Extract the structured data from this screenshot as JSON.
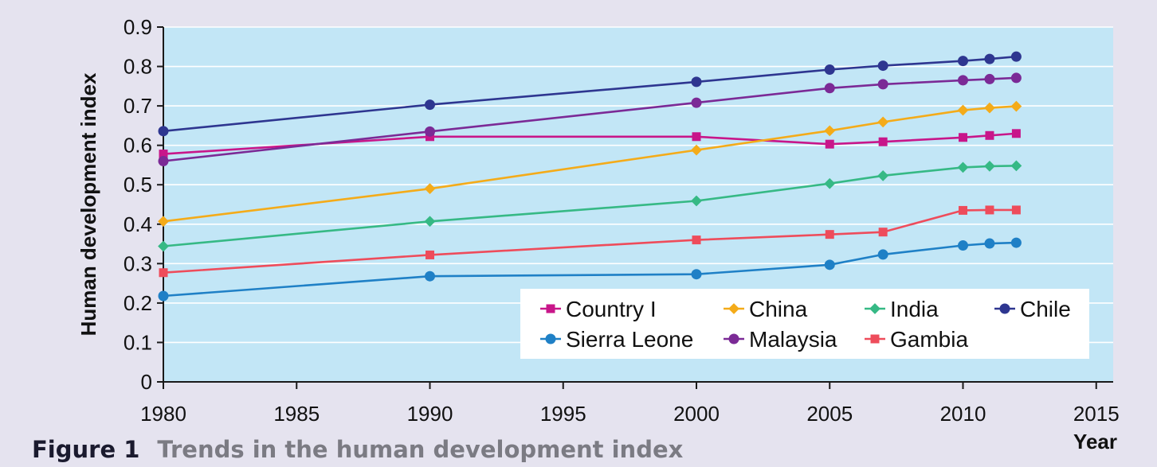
{
  "caption": {
    "number": "Figure 1",
    "text": "Trends in the human development index"
  },
  "colors": {
    "page_background": "#e5e3ef",
    "plot_background": "#c2e6f6",
    "gridline": "#ffffff",
    "axis": "#1a1a1a"
  },
  "chart_data": {
    "type": "line",
    "title": "",
    "xlabel": "Year",
    "ylabel": "Human development index",
    "xlim": [
      1980,
      2015
    ],
    "ylim": [
      0,
      0.9
    ],
    "xticks": [
      1980,
      1985,
      1990,
      1995,
      2000,
      2005,
      2010,
      2015
    ],
    "yticks": [
      0,
      0.1,
      0.2,
      0.3,
      0.4,
      0.5,
      0.6,
      0.7,
      0.8,
      0.9
    ],
    "xtick_labels": [
      "1980",
      "1985",
      "1990",
      "1995",
      "2000",
      "2005",
      "2010",
      "2015"
    ],
    "ytick_labels": [
      "0",
      "0.1",
      "0.2",
      "0.3",
      "0.4",
      "0.5",
      "0.6",
      "0.7",
      "0.8",
      "0.9"
    ],
    "grid": "horizontal",
    "legend_position": "bottom-right",
    "series": [
      {
        "name": "Country I",
        "color": "#c8168a",
        "marker": "square",
        "x": [
          1980,
          1990,
          2000,
          2005,
          2007,
          2010,
          2011,
          2012
        ],
        "y": [
          0.578,
          0.622,
          0.622,
          0.603,
          0.609,
          0.62,
          0.625,
          0.63
        ]
      },
      {
        "name": "China",
        "color": "#f4ab19",
        "marker": "diamond",
        "x": [
          1980,
          1990,
          2000,
          2005,
          2007,
          2010,
          2011,
          2012
        ],
        "y": [
          0.407,
          0.49,
          0.588,
          0.637,
          0.659,
          0.689,
          0.695,
          0.699
        ]
      },
      {
        "name": "India",
        "color": "#36b985",
        "marker": "diamond",
        "x": [
          1980,
          1990,
          2000,
          2005,
          2007,
          2010,
          2011,
          2012
        ],
        "y": [
          0.344,
          0.407,
          0.459,
          0.503,
          0.523,
          0.544,
          0.547,
          0.548
        ]
      },
      {
        "name": "Chile",
        "color": "#2e3690",
        "marker": "circle",
        "x": [
          1980,
          1990,
          2000,
          2005,
          2007,
          2010,
          2011,
          2012
        ],
        "y": [
          0.636,
          0.703,
          0.761,
          0.792,
          0.802,
          0.814,
          0.819,
          0.825
        ]
      },
      {
        "name": "Sierra Leone",
        "color": "#1f80c6",
        "marker": "circle",
        "x": [
          1980,
          1990,
          2000,
          2005,
          2007,
          2010,
          2011,
          2012
        ],
        "y": [
          0.218,
          0.268,
          0.273,
          0.297,
          0.323,
          0.346,
          0.351,
          0.353
        ]
      },
      {
        "name": "Malaysia",
        "color": "#7b2a96",
        "marker": "circle",
        "x": [
          1980,
          1990,
          2000,
          2005,
          2007,
          2010,
          2011,
          2012
        ],
        "y": [
          0.56,
          0.635,
          0.708,
          0.745,
          0.755,
          0.765,
          0.768,
          0.771
        ]
      },
      {
        "name": "Gambia",
        "color": "#ee4c5b",
        "marker": "square",
        "x": [
          1980,
          1990,
          2000,
          2005,
          2007,
          2010,
          2011,
          2012
        ],
        "y": [
          0.277,
          0.322,
          0.36,
          0.374,
          0.38,
          0.435,
          0.436,
          0.436
        ]
      }
    ]
  }
}
